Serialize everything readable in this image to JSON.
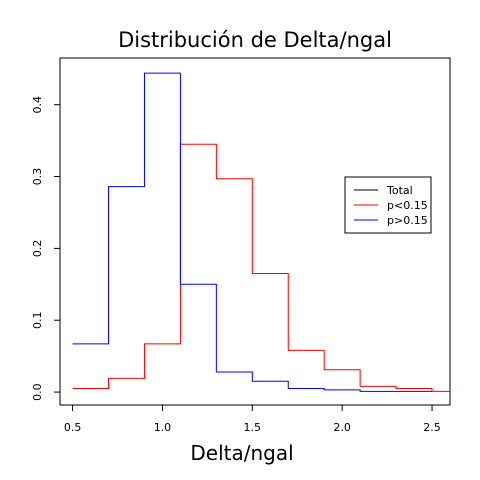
{
  "chart_data": {
    "type": "step",
    "title": "Distribución de Delta/ngal",
    "xlabel": "Delta/ngal",
    "ylabel": "",
    "xlim": [
      0.43,
      2.6
    ],
    "ylim": [
      -0.018,
      0.465
    ],
    "x_ticks": [
      0.5,
      1.0,
      1.5,
      2.0,
      2.5
    ],
    "x_tick_labels": [
      "0.5",
      "1.0",
      "1.5",
      "2.0",
      "2.5"
    ],
    "y_ticks": [
      0.0,
      0.1,
      0.2,
      0.3,
      0.4
    ],
    "y_tick_labels": [
      "0.0",
      "0.1",
      "0.2",
      "0.3",
      "0.4"
    ],
    "grid": false,
    "legend": {
      "position": "right",
      "entries": [
        {
          "label": "Total",
          "color": "#000000"
        },
        {
          "label": "p<0.15",
          "color": "#ff0000"
        },
        {
          "label": "p>0.15",
          "color": "#0000ff"
        }
      ]
    },
    "series": [
      {
        "name": "p<0.15",
        "color": "#ff0000",
        "bin_edges": [
          0.5,
          0.7,
          0.9,
          1.1,
          1.3,
          1.5,
          1.7,
          1.9,
          2.1,
          2.3,
          2.5,
          2.7
        ],
        "values": [
          0.005,
          0.019,
          0.067,
          0.345,
          0.297,
          0.165,
          0.058,
          0.031,
          0.008,
          0.005,
          0.001
        ]
      },
      {
        "name": "p>0.15",
        "color": "#0000ff",
        "bin_edges": [
          0.5,
          0.7,
          0.9,
          1.1,
          1.3,
          1.5,
          1.7,
          1.9,
          2.1,
          2.3,
          2.5
        ],
        "values": [
          0.067,
          0.286,
          0.444,
          0.15,
          0.028,
          0.015,
          0.005,
          0.003,
          0.001,
          0.001
        ]
      }
    ]
  }
}
